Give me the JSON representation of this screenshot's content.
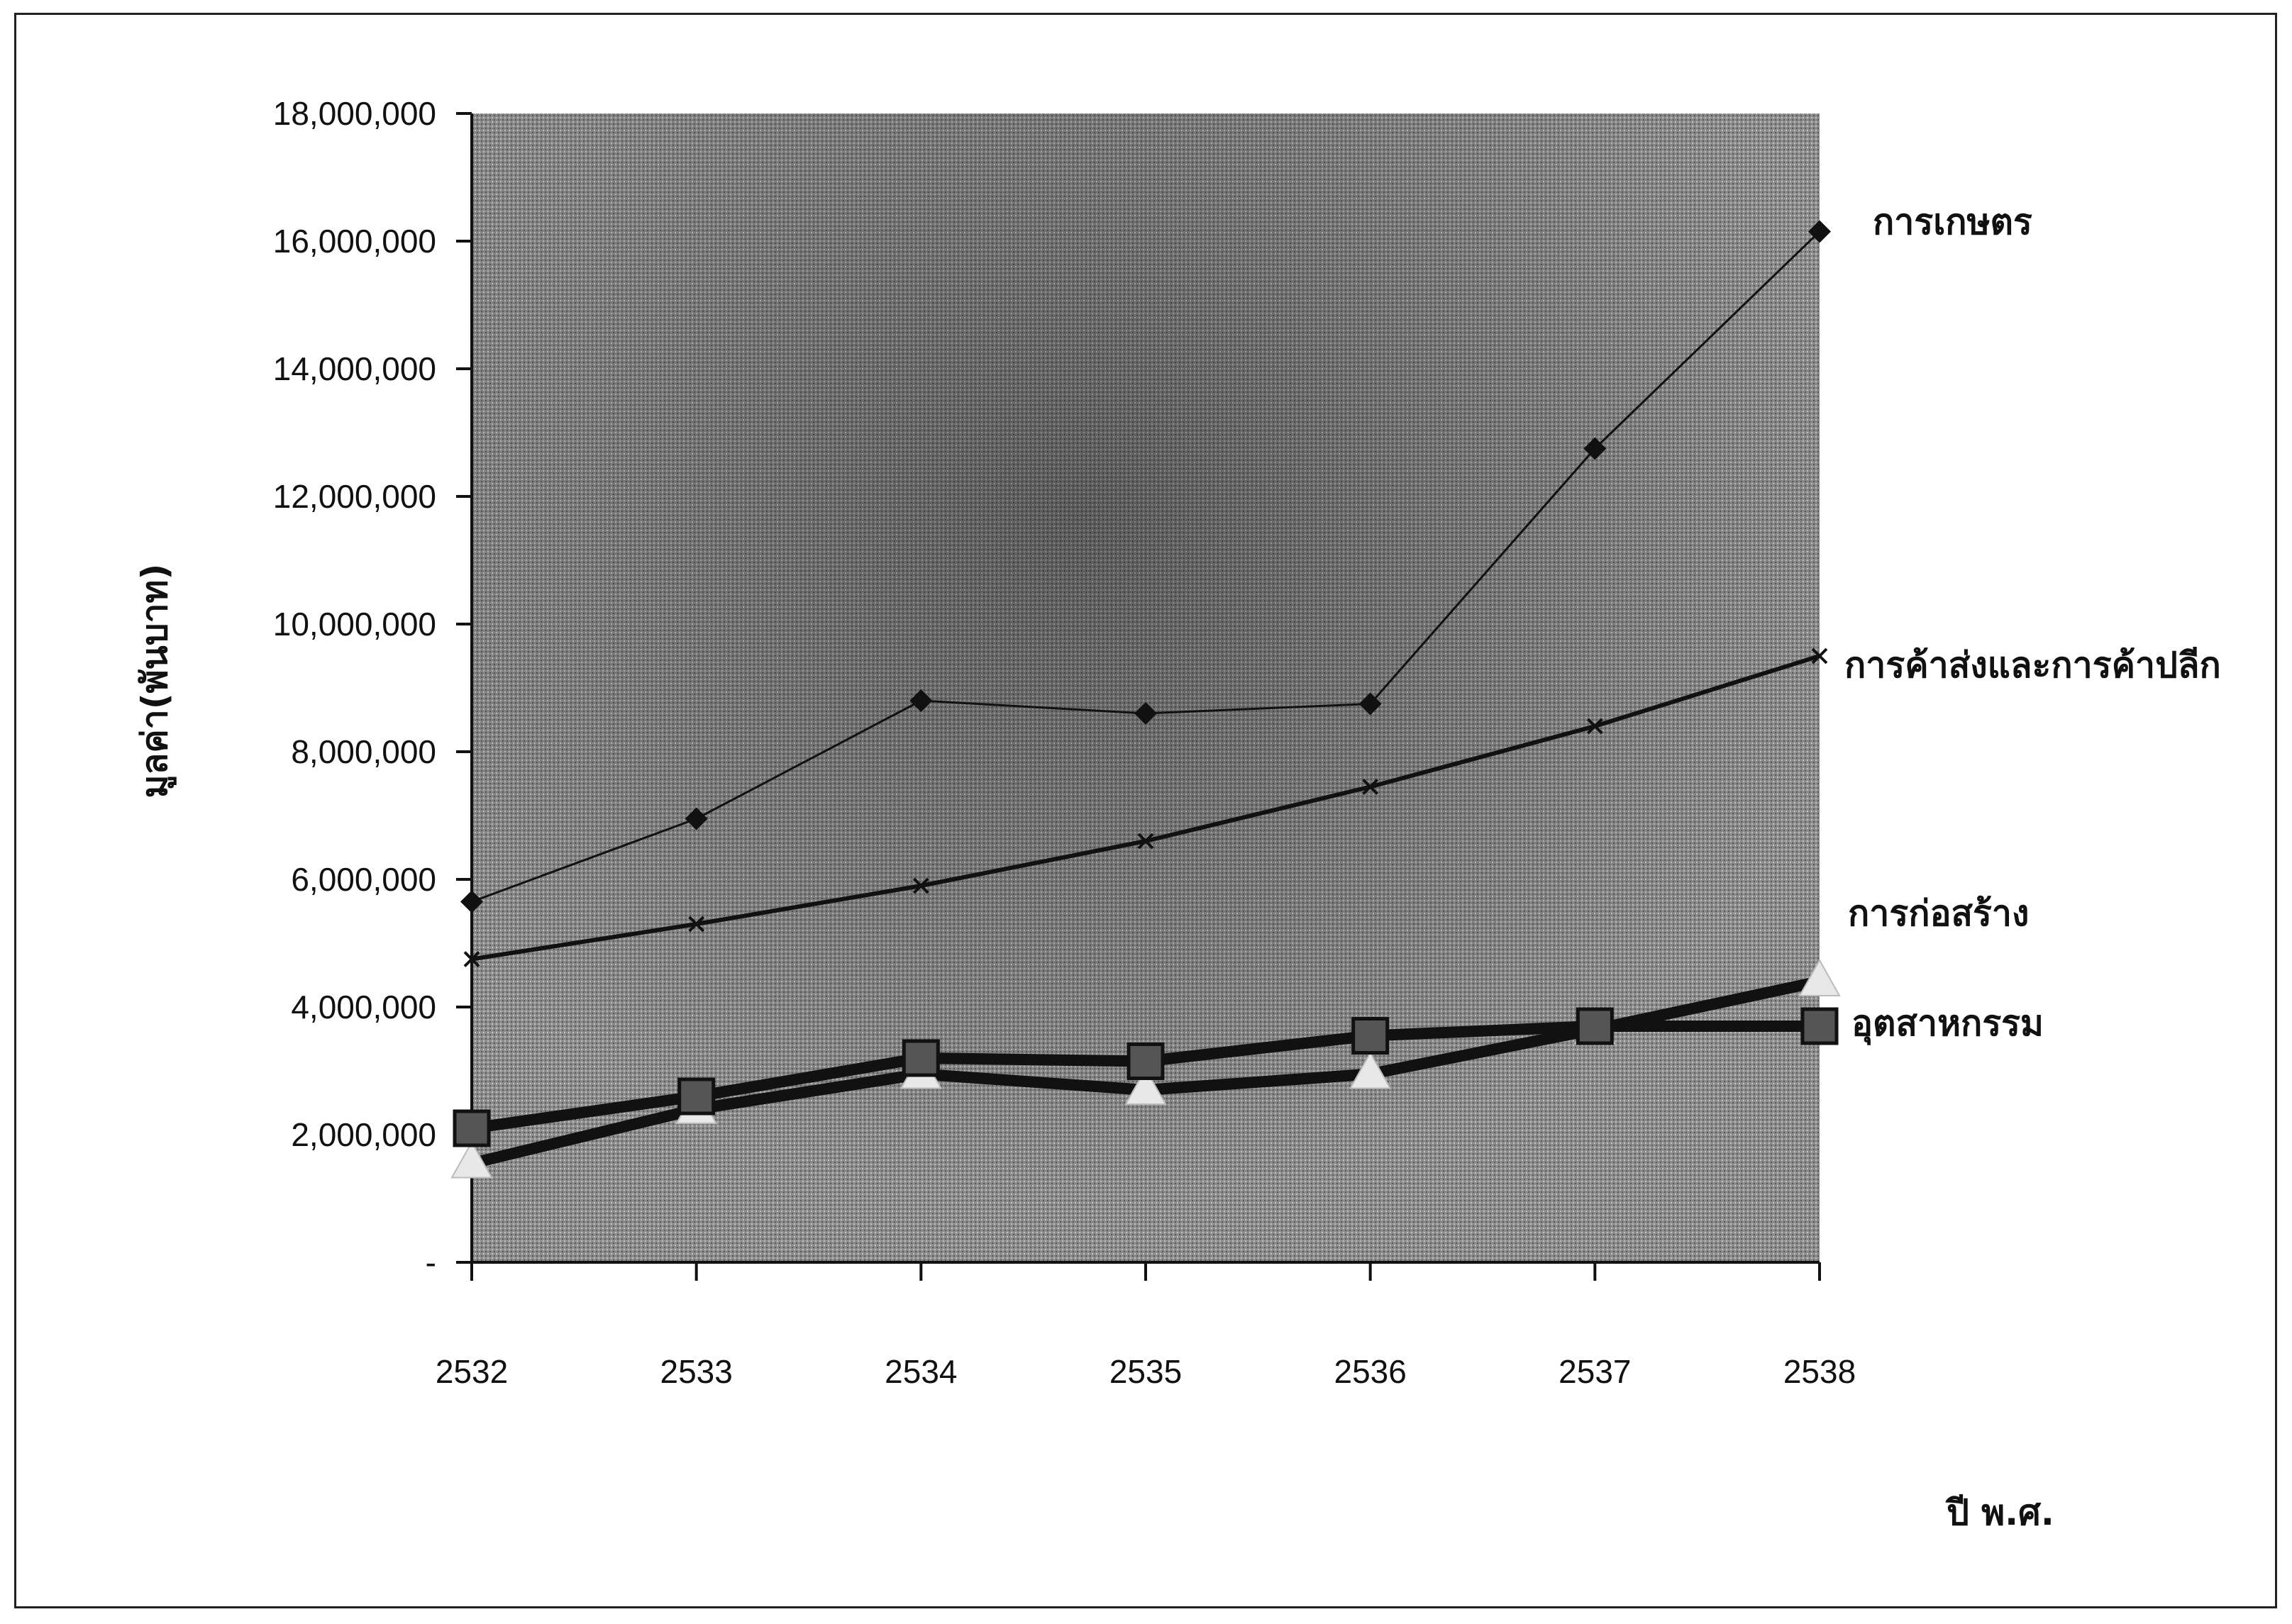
{
  "chart_data": {
    "type": "line",
    "title": "",
    "xlabel": "ปี พ.ศ.",
    "ylabel": "มูลค่า(พันบาท)",
    "categories": [
      "2532",
      "2533",
      "2534",
      "2535",
      "2536",
      "2537",
      "2538"
    ],
    "ylim": [
      0,
      18000000
    ],
    "yticks": [
      0,
      2000000,
      4000000,
      6000000,
      8000000,
      10000000,
      12000000,
      14000000,
      16000000,
      18000000
    ],
    "ytick_labels": [
      "-",
      "2,000,000",
      "4,000,000",
      "6,000,000",
      "8,000,000",
      "10,000,000",
      "12,000,000",
      "14,000,000",
      "16,000,000",
      "18,000,000"
    ],
    "grid": false,
    "legend": "inline labels at right end of each line",
    "series": [
      {
        "name": "การเกษตร",
        "color": "#111111",
        "marker": "diamond",
        "lineWidth": 3,
        "values": [
          5650000,
          6950000,
          8800000,
          8600000,
          8750000,
          12750000,
          16150000
        ]
      },
      {
        "name": "การค้าส่งและการค้าปลีก",
        "color": "#111111",
        "marker": "x",
        "lineWidth": 6,
        "values": [
          4750000,
          5300000,
          5900000,
          6600000,
          7450000,
          8400000,
          9500000
        ]
      },
      {
        "name": "การก่อสร้าง",
        "color": "#111111",
        "marker": "triangle",
        "lineWidth": 16,
        "values": [
          1550000,
          2400000,
          2950000,
          2700000,
          2950000,
          3650000,
          4400000
        ]
      },
      {
        "name": "อุตสาหกรรม",
        "color": "#111111",
        "marker": "square",
        "lineWidth": 16,
        "values": [
          2100000,
          2600000,
          3200000,
          3150000,
          3550000,
          3700000,
          3700000
        ]
      }
    ],
    "plot_background": "#9a9a9a"
  }
}
